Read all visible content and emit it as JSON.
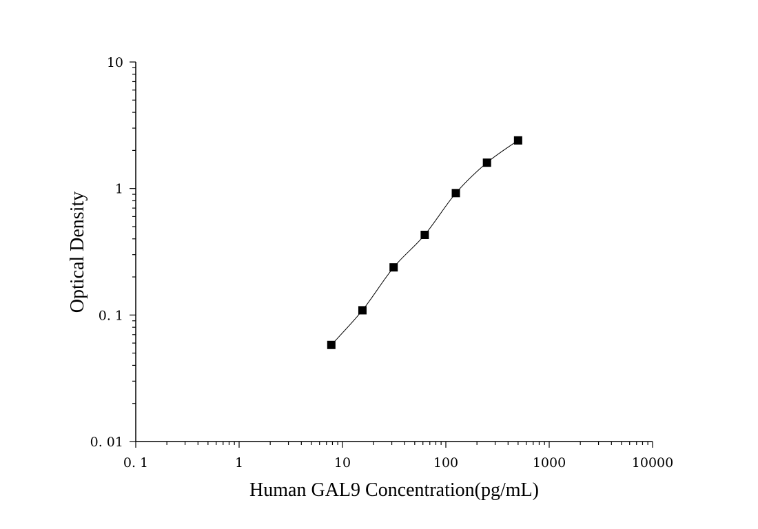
{
  "chart_data": {
    "type": "scatter",
    "title": "",
    "xlabel": "Human GAL9 Concentration(pg/mL)",
    "ylabel": "Optical Density",
    "xscale": "log",
    "yscale": "log",
    "xlim": [
      0.1,
      10000
    ],
    "ylim": [
      0.01,
      10
    ],
    "grid": false,
    "legend": "none",
    "x_tick_labels": [
      {
        "value": 0.1,
        "label": "0. 1"
      },
      {
        "value": 1,
        "label": "1"
      },
      {
        "value": 10,
        "label": "10"
      },
      {
        "value": 100,
        "label": "100"
      },
      {
        "value": 1000,
        "label": "1000"
      },
      {
        "value": 10000,
        "label": "10000"
      }
    ],
    "y_tick_labels": [
      {
        "value": 0.01,
        "label": "0. 01"
      },
      {
        "value": 0.1,
        "label": "0. 1"
      },
      {
        "value": 1,
        "label": "1"
      },
      {
        "value": 10,
        "label": "10"
      }
    ],
    "series": [
      {
        "marker": "square",
        "color": "#000000",
        "x": [
          7.8,
          15.6,
          31.25,
          62.5,
          125,
          250,
          500
        ],
        "y": [
          0.058,
          0.109,
          0.238,
          0.43,
          0.92,
          1.6,
          2.4
        ],
        "fit_line": true
      }
    ]
  }
}
